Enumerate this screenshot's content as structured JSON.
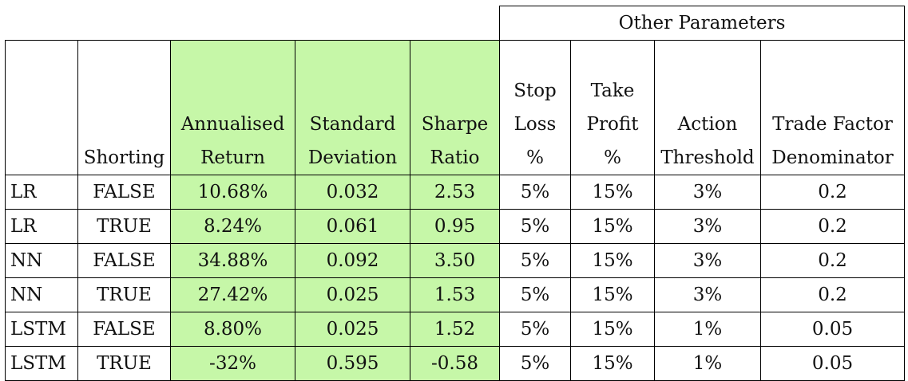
{
  "group_header": "Other Parameters",
  "columns": [
    {
      "lines": [
        "",
        "",
        "",
        "Shorting"
      ]
    },
    {
      "lines": [
        "",
        "",
        "Annualised",
        "Return"
      ]
    },
    {
      "lines": [
        "",
        "",
        "Standard",
        "Deviation"
      ]
    },
    {
      "lines": [
        "",
        "",
        "Sharpe",
        "Ratio"
      ]
    },
    {
      "lines": [
        "",
        "Stop",
        "Loss",
        "%"
      ]
    },
    {
      "lines": [
        "",
        "Take",
        "Profit",
        "%"
      ]
    },
    {
      "lines": [
        "",
        "",
        "Action",
        "Threshold"
      ]
    },
    {
      "lines": [
        "",
        "",
        "Trade Factor",
        "Denominator"
      ]
    }
  ],
  "rows": [
    {
      "model": "LR",
      "shorting": "FALSE",
      "return": "10.68%",
      "std": "0.032",
      "sharpe": "2.53",
      "stop": "5%",
      "take": "15%",
      "action": "3%",
      "trade": "0.2"
    },
    {
      "model": "LR",
      "shorting": "TRUE",
      "return": "8.24%",
      "std": "0.061",
      "sharpe": "0.95",
      "stop": "5%",
      "take": "15%",
      "action": "3%",
      "trade": "0.2"
    },
    {
      "model": "NN",
      "shorting": "FALSE",
      "return": "34.88%",
      "std": "0.092",
      "sharpe": "3.50",
      "stop": "5%",
      "take": "15%",
      "action": "3%",
      "trade": "0.2"
    },
    {
      "model": "NN",
      "shorting": "TRUE",
      "return": "27.42%",
      "std": "0.025",
      "sharpe": "1.53",
      "stop": "5%",
      "take": "15%",
      "action": "3%",
      "trade": "0.2"
    },
    {
      "model": "LSTM",
      "shorting": "FALSE",
      "return": "8.80%",
      "std": "0.025",
      "sharpe": "1.52",
      "stop": "5%",
      "take": "15%",
      "action": "1%",
      "trade": "0.05"
    },
    {
      "model": "LSTM",
      "shorting": "TRUE",
      "return": "-32%",
      "std": "0.595",
      "sharpe": "-0.58",
      "stop": "5%",
      "take": "15%",
      "action": "1%",
      "trade": "0.05"
    }
  ]
}
